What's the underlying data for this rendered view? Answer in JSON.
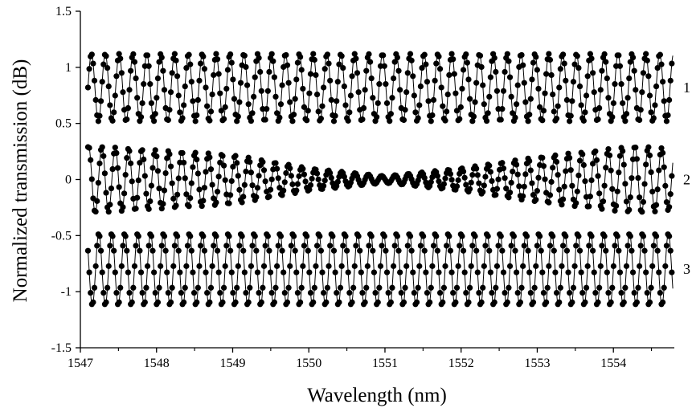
{
  "chart_data": {
    "type": "scatter",
    "title": "",
    "xlabel": "Wavelength (nm)",
    "ylabel": "Normalized transmission (dB)",
    "xlim": [
      1547,
      1554.8
    ],
    "ylim": [
      -1.5,
      1.5
    ],
    "xticks": [
      "1547",
      "1548",
      "1549",
      "1550",
      "1551",
      "1552",
      "1553",
      "1554"
    ],
    "yticks": [
      "-1.5",
      "-1",
      "-0.5",
      "0",
      "0.5",
      "1",
      "1.5"
    ],
    "grid": false,
    "marker": "filled-circle",
    "fit_line": true,
    "colors": {
      "marker": "#000000",
      "line": "#000000",
      "axis": "#000000"
    },
    "series": [
      {
        "label": "1",
        "center": 0.82,
        "amplitude": [
          [
            1547.1,
            0.3
          ],
          [
            1554.8,
            0.3
          ]
        ],
        "fringe_period_nm": 0.182,
        "point_spacing_nm": 0.017
      },
      {
        "label": "2",
        "center": 0.0,
        "amplitude": [
          [
            1547.1,
            0.3
          ],
          [
            1549.0,
            0.22
          ],
          [
            1550.0,
            0.1
          ],
          [
            1551.0,
            0.03
          ],
          [
            1552.0,
            0.1
          ],
          [
            1553.0,
            0.2
          ],
          [
            1554.3,
            0.3
          ],
          [
            1554.8,
            0.27
          ]
        ],
        "fringe_period_nm": 0.175,
        "point_spacing_nm": 0.017
      },
      {
        "label": "3",
        "center": -0.8,
        "amplitude": [
          [
            1547.1,
            0.32
          ],
          [
            1554.8,
            0.32
          ]
        ],
        "fringe_period_nm": 0.17,
        "point_spacing_nm": 0.017
      }
    ]
  }
}
